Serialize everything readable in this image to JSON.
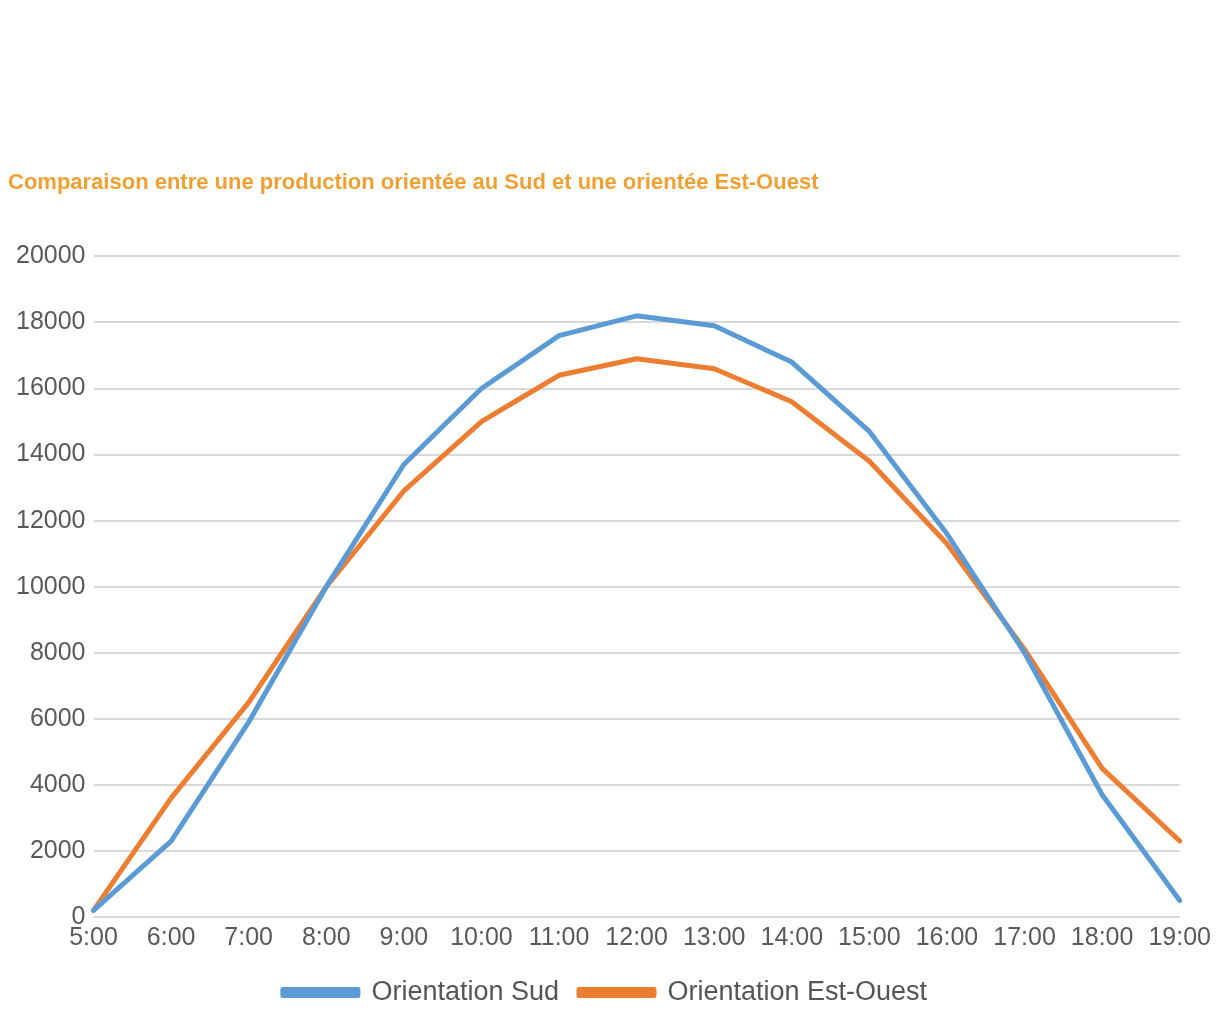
{
  "chart_data": {
    "type": "line",
    "title": "Comparaison entre une production orientée au Sud et une orientée Est-Ouest",
    "categories": [
      "5:00",
      "6:00",
      "7:00",
      "8:00",
      "9:00",
      "10:00",
      "11:00",
      "12:00",
      "13:00",
      "14:00",
      "15:00",
      "16:00",
      "17:00",
      "18:00",
      "19:00"
    ],
    "series": [
      {
        "name": "Orientation Sud",
        "color": "#5b9bd5",
        "values": [
          200,
          2300,
          5900,
          10000,
          13700,
          16000,
          17600,
          18200,
          17900,
          16800,
          14700,
          11600,
          8000,
          3700,
          500
        ]
      },
      {
        "name": "Orientation Est-Ouest",
        "color": "#ed7d31",
        "values": [
          200,
          3600,
          6500,
          10000,
          12900,
          15000,
          16400,
          16900,
          16600,
          15600,
          13800,
          11300,
          8100,
          4500,
          2300
        ]
      }
    ],
    "ylim": [
      0,
      20000
    ],
    "yticks": [
      0,
      2000,
      4000,
      6000,
      8000,
      10000,
      12000,
      14000,
      16000,
      18000,
      20000
    ],
    "grid": "y",
    "legend": "bottom",
    "marker": "none",
    "line_style": "solid"
  }
}
